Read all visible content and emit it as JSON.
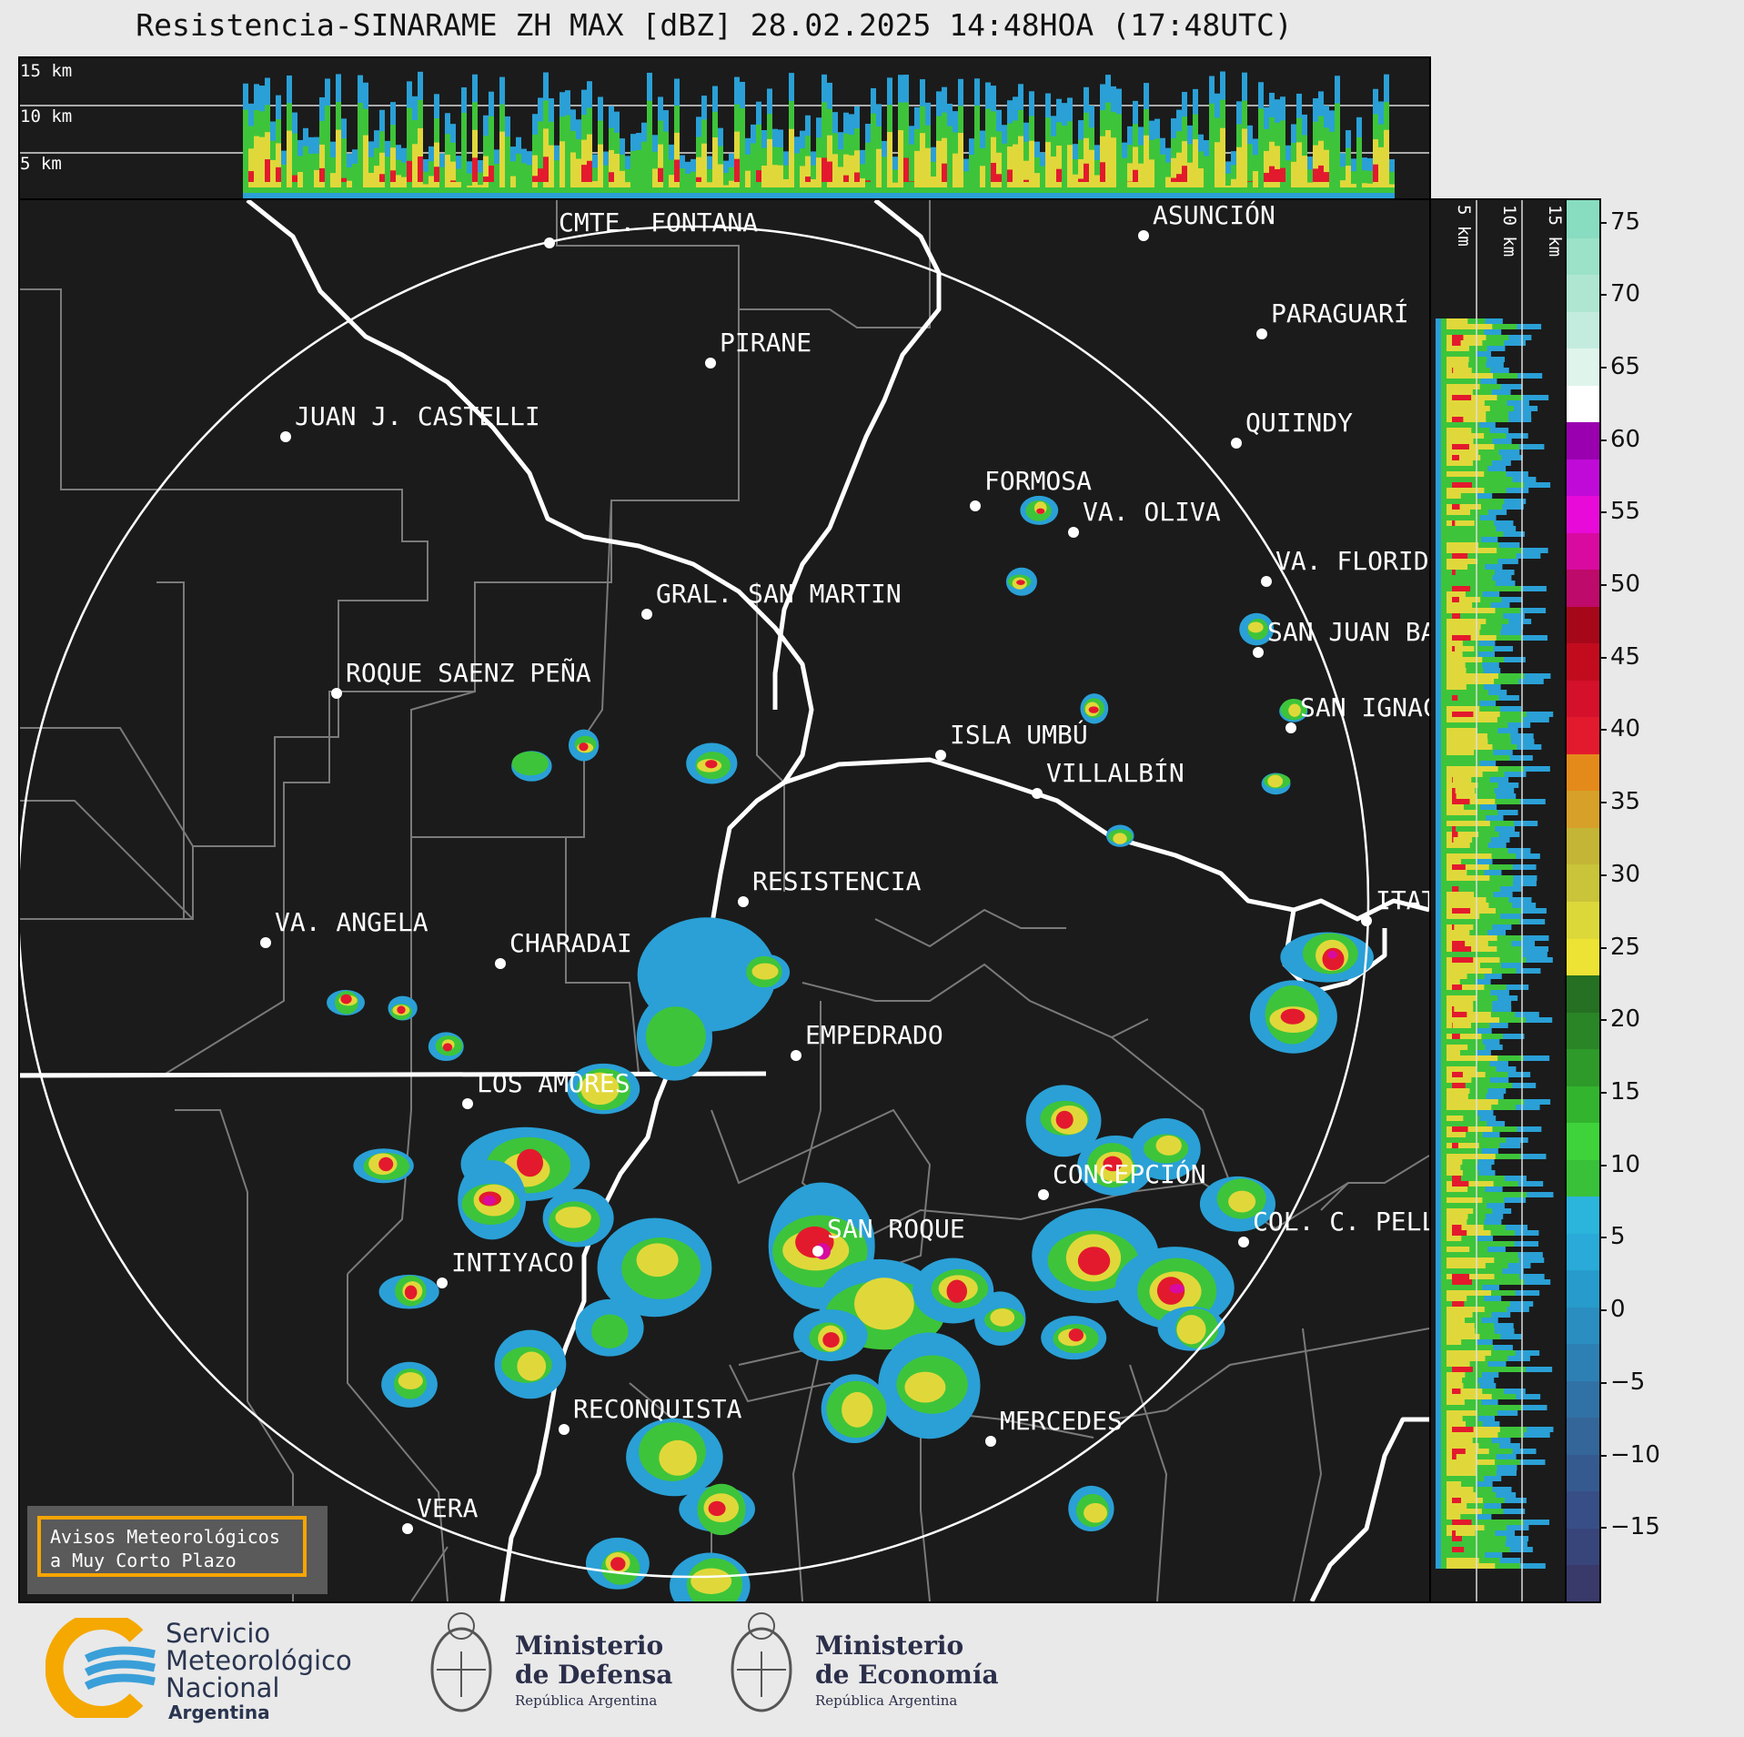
{
  "title": "Resistencia-SINARAME ZH MAX [dBZ] 28.02.2025 14:48HOA (17:48UTC)",
  "top_panel": {
    "height_labels": [
      "15 km",
      "10 km",
      "5 km"
    ]
  },
  "right_panel": {
    "height_labels": [
      "5 km",
      "10 km",
      "15 km"
    ]
  },
  "colorbar": {
    "unit": "dBZ",
    "ticks": [
      "75",
      "70",
      "65",
      "60",
      "55",
      "50",
      "45",
      "40",
      "35",
      "30",
      "25",
      "20",
      "15",
      "10",
      "5",
      "0",
      "−5",
      "−10",
      "−15"
    ],
    "tick_values": [
      75,
      70,
      65,
      60,
      55,
      50,
      45,
      40,
      35,
      30,
      25,
      20,
      15,
      10,
      5,
      0,
      -5,
      -10,
      -15
    ],
    "range": [
      -20,
      76.6
    ],
    "colors": [
      "#3a3a6a",
      "#38457a",
      "#374f86",
      "#355a90",
      "#34669a",
      "#3172a6",
      "#2d80b3",
      "#2a8ec0",
      "#279ccc",
      "#29aad9",
      "#2bb5dd",
      "#39c13a",
      "#3ed33a",
      "#33b42e",
      "#2d9a29",
      "#2a8526",
      "#257022",
      "#ede334",
      "#dcd83a",
      "#c9c43a",
      "#c5b536",
      "#d6a029",
      "#e48a1b",
      "#e31a2d",
      "#d4102a",
      "#c20c1e",
      "#a6081a",
      "#be0a6a",
      "#d80aa0",
      "#e80ad8",
      "#c00ad8",
      "#9a00b0",
      "#ffffff",
      "#dff5ec",
      "#c3ecde",
      "#aee6d2",
      "#9be2c8",
      "#88dcc0"
    ]
  },
  "cities": [
    {
      "name": "CMTE. FONTANA"
    },
    {
      "name": "ASUNCIÓN"
    },
    {
      "name": "PIRANE"
    },
    {
      "name": "PARAGUARÍ"
    },
    {
      "name": "JUAN J. CASTELLI"
    },
    {
      "name": "VA. OLIVA"
    },
    {
      "name": "QUIINDY"
    },
    {
      "name": "FORMOSA"
    },
    {
      "name": "VA. FLORIDA"
    },
    {
      "name": "GRAL. SAN MARTIN"
    },
    {
      "name": "SAN JUAN BAUTISTA"
    },
    {
      "name": "ROQUE SAENZ PEÑA"
    },
    {
      "name": "SAN IGNACIO"
    },
    {
      "name": "ISLA UMBÚ"
    },
    {
      "name": "VILLALBÍN"
    },
    {
      "name": "RESISTENCIA"
    },
    {
      "name": "VA. ANGELA"
    },
    {
      "name": "CHARADAI"
    },
    {
      "name": "ITATI"
    },
    {
      "name": "EMPEDRADO"
    },
    {
      "name": "LOS AMORES"
    },
    {
      "name": "CONCEPCIÓN"
    },
    {
      "name": "SAN ROQUE"
    },
    {
      "name": "COL. C. PELLEGRINI"
    },
    {
      "name": "INTIYACO"
    },
    {
      "name": "RECONQUISTA"
    },
    {
      "name": "MERCEDES"
    },
    {
      "name": "VERA"
    }
  ],
  "avisos": {
    "line1": "Avisos Meteorológicos",
    "line2": "a Muy Corto Plazo"
  },
  "footer": {
    "smn_line1": "Servicio",
    "smn_line2": "Meteorológico",
    "smn_line3": "Nacional",
    "smn_line4": "Argentina",
    "defensa_line1": "Ministerio",
    "defensa_line2": "de Defensa",
    "defensa_line3": "República Argentina",
    "economia_line1": "Ministerio",
    "economia_line2": "de Economía",
    "economia_line3": "República Argentina"
  }
}
